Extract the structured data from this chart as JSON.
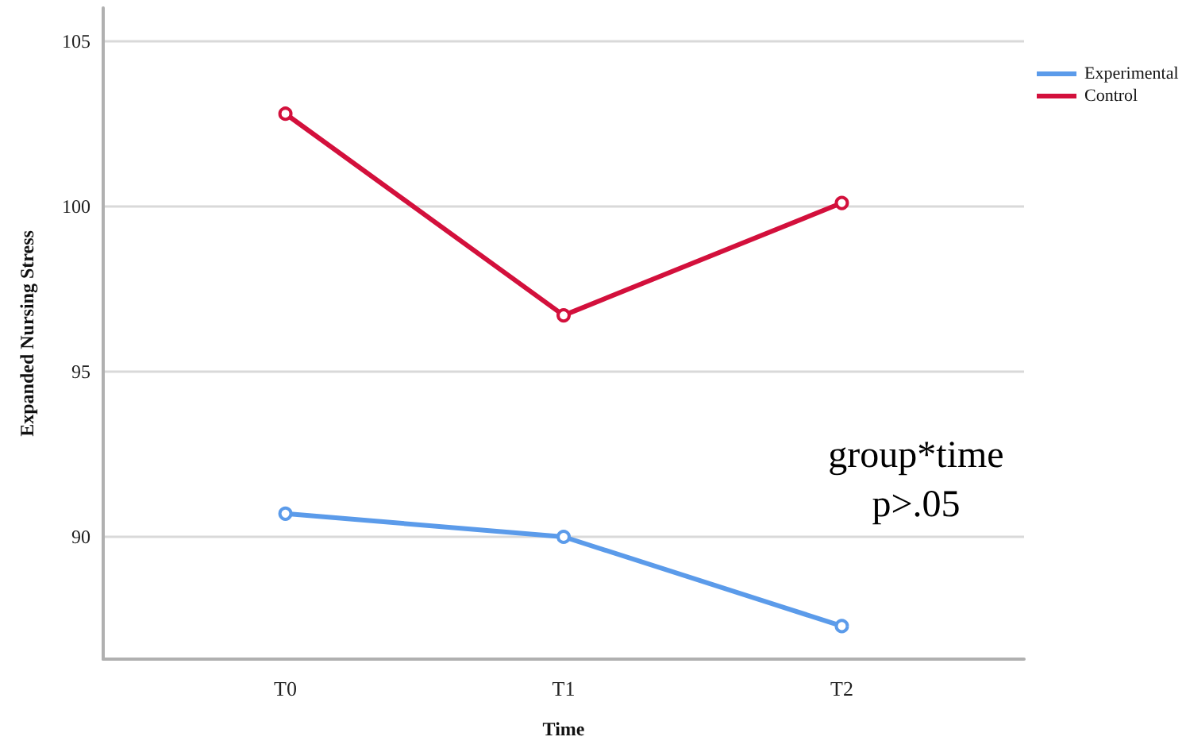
{
  "chart_data": {
    "type": "line",
    "xlabel": "Time",
    "ylabel": "Expanded Nursing Stress",
    "categories": [
      "T0",
      "T1",
      "T2"
    ],
    "series": [
      {
        "name": "Experimental",
        "color": "#5b9bea",
        "values": [
          90.7,
          90.0,
          87.3
        ]
      },
      {
        "name": "Control",
        "color": "#d3103c",
        "values": [
          102.8,
          96.7,
          100.1
        ]
      }
    ],
    "ylim": [
      86.3,
      106
    ],
    "yticks": [
      90,
      95,
      100,
      105
    ],
    "grid": "y",
    "legend": "top right",
    "marker": "circle",
    "line_style": "solid",
    "annotations": [
      "group*time",
      "p>.05"
    ]
  }
}
